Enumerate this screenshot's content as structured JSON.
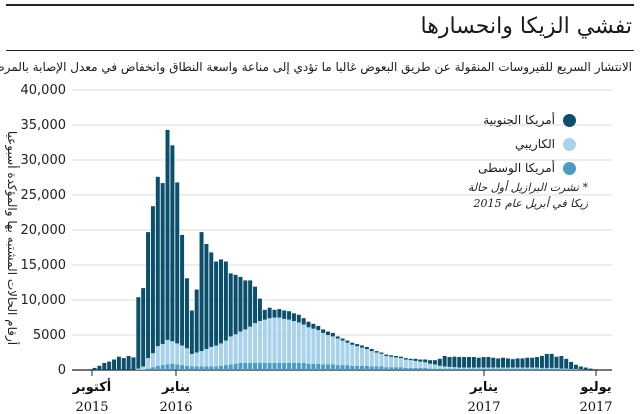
{
  "title": "تفشي الزيكا وانحسارها",
  "subtitle": "الانتشار السريع للفيروسات المنقولة عن طريق البعوض غالبا ما تؤدي إلى مناعة واسعة النطاق وانخفاض في معدل الإصابة بالمرض.",
  "note": "* نشرت البرازيل أول حالة زيكا في أبريل عام 2015",
  "colors": {
    "south_america": "#0b4f6c",
    "caribbean": "#a9d3ea",
    "central_america": "#4a9cc2",
    "rules": "#222222"
  },
  "chart_data": {
    "type": "bar",
    "stacked": true,
    "ylabel": "أرقام الحالات المشتبه بها والمؤكدة أسبوعيا",
    "ylim": [
      0,
      40000
    ],
    "yticks": [
      "0",
      "5000",
      "10,000",
      "15,000",
      "20,000",
      "25,000",
      "30,000",
      "35,000",
      "40,000"
    ],
    "grid": "horizontal",
    "legend_position": "top-right",
    "xticks": [
      {
        "month": "أكتوبر",
        "year": "2015"
      },
      {
        "month": "يناير",
        "year": "2016"
      },
      {
        "month": "يناير",
        "year": "2017"
      },
      {
        "month": "يوليو",
        "year": "2017"
      }
    ],
    "series": [
      {
        "name": "أمريكا الجنوبية",
        "color": "#0b4f6c",
        "values": [
          0,
          0,
          100,
          300,
          600,
          1000,
          1200,
          1500,
          1900,
          1700,
          2000,
          1800,
          10200,
          11200,
          18000,
          21000,
          24200,
          23000,
          30000,
          28000,
          23000,
          15800,
          10000,
          6200,
          9000,
          17000,
          15000,
          13500,
          12000,
          12000,
          11300,
          9000,
          8500,
          7800,
          7000,
          6600,
          5200,
          3200,
          1400,
          1500,
          1100,
          1200,
          1200,
          1200,
          1100,
          1100,
          900,
          800,
          700,
          600,
          500,
          500,
          500,
          300,
          300,
          300,
          300,
          300,
          300,
          300,
          300,
          200,
          200,
          200,
          200,
          200,
          200,
          200,
          200,
          300,
          300,
          400,
          500,
          600,
          1000,
          1500,
          1400,
          1500,
          1500,
          1500,
          1500,
          1500,
          1400,
          1500,
          1500,
          1400,
          1300,
          1400,
          1300,
          1200,
          1300,
          1300,
          1400,
          1400,
          1500,
          1700,
          2000,
          2000,
          1600,
          1800,
          1400,
          1000,
          600,
          400,
          300,
          200,
          100,
          50,
          0
        ]
      },
      {
        "name": "الكاريبي",
        "color": "#a9d3ea",
        "values": [
          0,
          0,
          0,
          0,
          0,
          0,
          0,
          0,
          0,
          0,
          0,
          0,
          200,
          500,
          1500,
          2000,
          2800,
          3000,
          3500,
          3200,
          3000,
          2800,
          2500,
          1800,
          2000,
          2200,
          2500,
          2800,
          3000,
          3200,
          3500,
          4000,
          4200,
          4500,
          4800,
          5200,
          5700,
          6000,
          6200,
          6400,
          6500,
          6500,
          6300,
          6200,
          6000,
          5800,
          5500,
          5200,
          5000,
          4800,
          4500,
          4200,
          4000,
          3800,
          3500,
          3200,
          3000,
          2800,
          2600,
          2400,
          2200,
          2000,
          1800,
          1600,
          1500,
          1400,
          1300,
          1200,
          1100,
          1000,
          900,
          800,
          700,
          600,
          400,
          300,
          250,
          200,
          150,
          150,
          150,
          150,
          150,
          150,
          150,
          150,
          150,
          150,
          150,
          150,
          150,
          150,
          150,
          150,
          150,
          100,
          100,
          100,
          100,
          100,
          100,
          50,
          50,
          50,
          0,
          0,
          0,
          0,
          0
        ]
      },
      {
        "name": "أمريكا الوسطى",
        "color": "#4a9cc2",
        "values": [
          0,
          0,
          0,
          0,
          0,
          0,
          0,
          0,
          0,
          0,
          0,
          0,
          0,
          0,
          200,
          400,
          600,
          700,
          800,
          900,
          800,
          700,
          600,
          500,
          500,
          500,
          500,
          500,
          500,
          600,
          700,
          800,
          900,
          1000,
          1000,
          1000,
          1000,
          1000,
          1000,
          1000,
          1000,
          1000,
          1000,
          1000,
          1000,
          1000,
          1000,
          900,
          900,
          900,
          800,
          800,
          800,
          700,
          700,
          700,
          600,
          600,
          600,
          600,
          500,
          500,
          500,
          400,
          400,
          400,
          400,
          300,
          300,
          300,
          300,
          300,
          200,
          200,
          200,
          200,
          200,
          200,
          200,
          200,
          200,
          200,
          200,
          200,
          200,
          200,
          200,
          200,
          200,
          200,
          200,
          200,
          200,
          200,
          200,
          200,
          200,
          200,
          200,
          100,
          100,
          100,
          100,
          50,
          50,
          0,
          0,
          0,
          0,
          0
        ]
      }
    ]
  }
}
